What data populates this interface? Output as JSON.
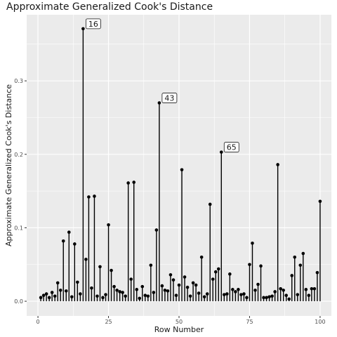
{
  "chart_data": {
    "type": "lollipop",
    "title": "Approximate Generalized Cook's Distance",
    "xlabel": "Row Number",
    "ylabel": "Approximate Generalized Cook's Distance",
    "xlim": [
      -4,
      104
    ],
    "ylim": [
      -0.02,
      0.39
    ],
    "x_ticks": [
      0,
      25,
      50,
      75,
      100
    ],
    "y_ticks": [
      0.0,
      0.1,
      0.2,
      0.3
    ],
    "y_tick_labels": [
      "0.0",
      "0.1",
      "0.2",
      "0.3"
    ],
    "grid": true,
    "panel_background": "#ebebeb",
    "grid_color": "#ffffff",
    "point_color": "#000000",
    "annotations": [
      {
        "row": 16,
        "label": "16"
      },
      {
        "row": 43,
        "label": "43"
      },
      {
        "row": 65,
        "label": "65"
      }
    ],
    "x": [
      1,
      2,
      3,
      4,
      5,
      6,
      7,
      8,
      9,
      10,
      11,
      12,
      13,
      14,
      15,
      16,
      17,
      18,
      19,
      20,
      21,
      22,
      23,
      24,
      25,
      26,
      27,
      28,
      29,
      30,
      31,
      32,
      33,
      34,
      35,
      36,
      37,
      38,
      39,
      40,
      41,
      42,
      43,
      44,
      45,
      46,
      47,
      48,
      49,
      50,
      51,
      52,
      53,
      54,
      55,
      56,
      57,
      58,
      59,
      60,
      61,
      62,
      63,
      64,
      65,
      66,
      67,
      68,
      69,
      70,
      71,
      72,
      73,
      74,
      75,
      76,
      77,
      78,
      79,
      80,
      81,
      82,
      83,
      84,
      85,
      86,
      87,
      88,
      89,
      90,
      91,
      92,
      93,
      94,
      95,
      96,
      97,
      98,
      99,
      100
    ],
    "values": [
      0.005,
      0.008,
      0.01,
      0.005,
      0.012,
      0.007,
      0.025,
      0.015,
      0.082,
      0.014,
      0.094,
      0.006,
      0.078,
      0.026,
      0.01,
      0.371,
      0.057,
      0.142,
      0.018,
      0.143,
      0.007,
      0.047,
      0.005,
      0.009,
      0.104,
      0.042,
      0.02,
      0.015,
      0.013,
      0.012,
      0.007,
      0.161,
      0.03,
      0.162,
      0.016,
      0.004,
      0.02,
      0.008,
      0.007,
      0.049,
      0.012,
      0.097,
      0.27,
      0.021,
      0.015,
      0.014,
      0.036,
      0.029,
      0.008,
      0.022,
      0.179,
      0.033,
      0.019,
      0.007,
      0.025,
      0.022,
      0.011,
      0.06,
      0.006,
      0.01,
      0.132,
      0.03,
      0.04,
      0.044,
      0.203,
      0.009,
      0.01,
      0.037,
      0.016,
      0.013,
      0.016,
      0.009,
      0.01,
      0.005,
      0.05,
      0.079,
      0.015,
      0.023,
      0.048,
      0.005,
      0.005,
      0.006,
      0.007,
      0.013,
      0.186,
      0.017,
      0.015,
      0.008,
      0.003,
      0.035,
      0.06,
      0.009,
      0.049,
      0.065,
      0.016,
      0.008,
      0.017,
      0.017,
      0.039,
      0.136
    ]
  }
}
